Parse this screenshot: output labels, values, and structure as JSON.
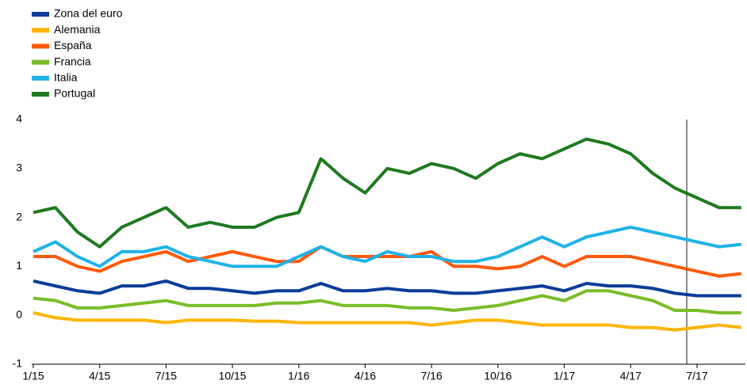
{
  "chart_data": {
    "type": "line",
    "categories": [
      "1/15",
      null,
      null,
      "4/15",
      null,
      null,
      "7/15",
      null,
      null,
      "10/15",
      null,
      null,
      "1/16",
      null,
      null,
      "4/16",
      null,
      null,
      "7/16",
      null,
      null,
      "10/16",
      null,
      null,
      "1/17",
      null,
      null,
      "4/17",
      null,
      null,
      "7/17",
      null,
      null
    ],
    "series": [
      {
        "name": "Zona del euro",
        "color": "#0b3c99",
        "values": [
          0.7,
          0.6,
          0.5,
          0.45,
          0.6,
          0.6,
          0.7,
          0.55,
          0.55,
          0.5,
          0.45,
          0.5,
          0.5,
          0.65,
          0.5,
          0.5,
          0.55,
          0.5,
          0.5,
          0.45,
          0.45,
          0.5,
          0.55,
          0.6,
          0.5,
          0.65,
          0.6,
          0.6,
          0.55,
          0.45,
          0.4,
          0.4,
          0.4
        ]
      },
      {
        "name": "Alemania",
        "color": "#ffb400",
        "values": [
          0.05,
          -0.05,
          -0.1,
          -0.1,
          -0.1,
          -0.1,
          -0.15,
          -0.1,
          -0.1,
          -0.1,
          -0.12,
          -0.12,
          -0.15,
          -0.15,
          -0.15,
          -0.15,
          -0.15,
          -0.15,
          -0.2,
          -0.15,
          -0.1,
          -0.1,
          -0.15,
          -0.2,
          -0.2,
          -0.2,
          -0.2,
          -0.25,
          -0.25,
          -0.3,
          -0.25,
          -0.2,
          -0.25
        ]
      },
      {
        "name": "España",
        "color": "#ff5a0a",
        "values": [
          1.2,
          1.2,
          1.0,
          0.9,
          1.1,
          1.2,
          1.3,
          1.1,
          1.2,
          1.3,
          1.2,
          1.1,
          1.1,
          1.4,
          1.2,
          1.2,
          1.2,
          1.2,
          1.3,
          1.0,
          1.0,
          0.95,
          1.0,
          1.2,
          1.0,
          1.2,
          1.2,
          1.2,
          1.1,
          1.0,
          0.9,
          0.8,
          0.85
        ]
      },
      {
        "name": "Francia",
        "color": "#78be28",
        "values": [
          0.35,
          0.3,
          0.15,
          0.15,
          0.2,
          0.25,
          0.3,
          0.2,
          0.2,
          0.2,
          0.2,
          0.25,
          0.25,
          0.3,
          0.2,
          0.2,
          0.2,
          0.15,
          0.15,
          0.1,
          0.15,
          0.2,
          0.3,
          0.4,
          0.3,
          0.5,
          0.5,
          0.4,
          0.3,
          0.1,
          0.1,
          0.05,
          0.05
        ]
      },
      {
        "name": "Italia",
        "color": "#1eb2e8",
        "values": [
          1.3,
          1.5,
          1.2,
          1.0,
          1.3,
          1.3,
          1.4,
          1.2,
          1.1,
          1.0,
          1.0,
          1.0,
          1.2,
          1.4,
          1.2,
          1.1,
          1.3,
          1.2,
          1.2,
          1.1,
          1.1,
          1.2,
          1.4,
          1.6,
          1.4,
          1.6,
          1.7,
          1.8,
          1.7,
          1.6,
          1.5,
          1.4,
          1.45
        ]
      },
      {
        "name": "Portugal",
        "color": "#1e7a1e",
        "values": [
          2.1,
          2.2,
          1.7,
          1.4,
          1.8,
          2.0,
          2.2,
          1.8,
          1.9,
          1.8,
          1.8,
          2.0,
          2.1,
          3.2,
          2.8,
          2.5,
          3.0,
          2.9,
          3.1,
          3.0,
          2.8,
          3.1,
          3.3,
          3.2,
          3.4,
          3.6,
          3.5,
          3.3,
          2.9,
          2.6,
          2.4,
          2.2,
          2.2
        ]
      }
    ],
    "ylim": [
      -1,
      4
    ],
    "yticks": [
      -1,
      0,
      1,
      2,
      3,
      4
    ],
    "grid": false
  }
}
